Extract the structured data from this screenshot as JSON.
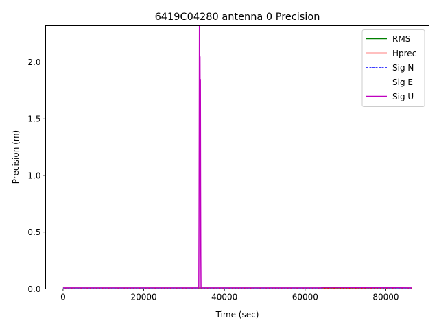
{
  "chart_data": {
    "type": "line",
    "title": "6419C04280 antenna 0 Precision",
    "xlabel": "Time (sec)",
    "ylabel": "Precision (m)",
    "xlim": [
      -4320,
      90720
    ],
    "ylim": [
      0,
      2.32
    ],
    "xticks": [
      0,
      20000,
      40000,
      60000,
      80000
    ],
    "yticks": [
      0.0,
      0.5,
      1.0,
      1.5,
      2.0
    ],
    "grid": false,
    "legend_position": "top-right",
    "series": [
      {
        "name": "RMS",
        "color": "#008000",
        "style": "solid",
        "x": [
          0,
          33900,
          34000,
          34200,
          86400
        ],
        "y": [
          0.008,
          0.008,
          0.008,
          0.008,
          0.008
        ]
      },
      {
        "name": "Hprec",
        "color": "#ff0000",
        "style": "solid",
        "x": [
          0,
          33900,
          34000,
          34200,
          86400
        ],
        "y": [
          0.006,
          0.006,
          0.006,
          0.006,
          0.006
        ]
      },
      {
        "name": "Sig N",
        "color": "#0000ff",
        "style": "dashed",
        "x": [
          0,
          33900,
          34000,
          34200,
          86400
        ],
        "y": [
          0.004,
          0.004,
          0.004,
          0.004,
          0.004
        ]
      },
      {
        "name": "Sig E",
        "color": "#00bfbf",
        "style": "dashed",
        "x": [
          0,
          33900,
          34000,
          34200,
          86400
        ],
        "y": [
          0.004,
          0.004,
          0.004,
          0.004,
          0.004
        ]
      },
      {
        "name": "Sig U",
        "color": "#bf00bf",
        "style": "solid",
        "x": [
          0,
          33600,
          33650,
          33700,
          33750,
          33800,
          33850,
          33900,
          33950,
          34000,
          34050,
          34100,
          34150,
          34200,
          34300,
          64000,
          64100,
          86400
        ],
        "y": [
          0.01,
          0.01,
          0.02,
          0.6,
          1.4,
          2.32,
          1.9,
          1.2,
          2.05,
          1.5,
          1.85,
          0.9,
          0.3,
          0.01,
          0.01,
          0.01,
          0.015,
          0.01
        ]
      }
    ]
  }
}
